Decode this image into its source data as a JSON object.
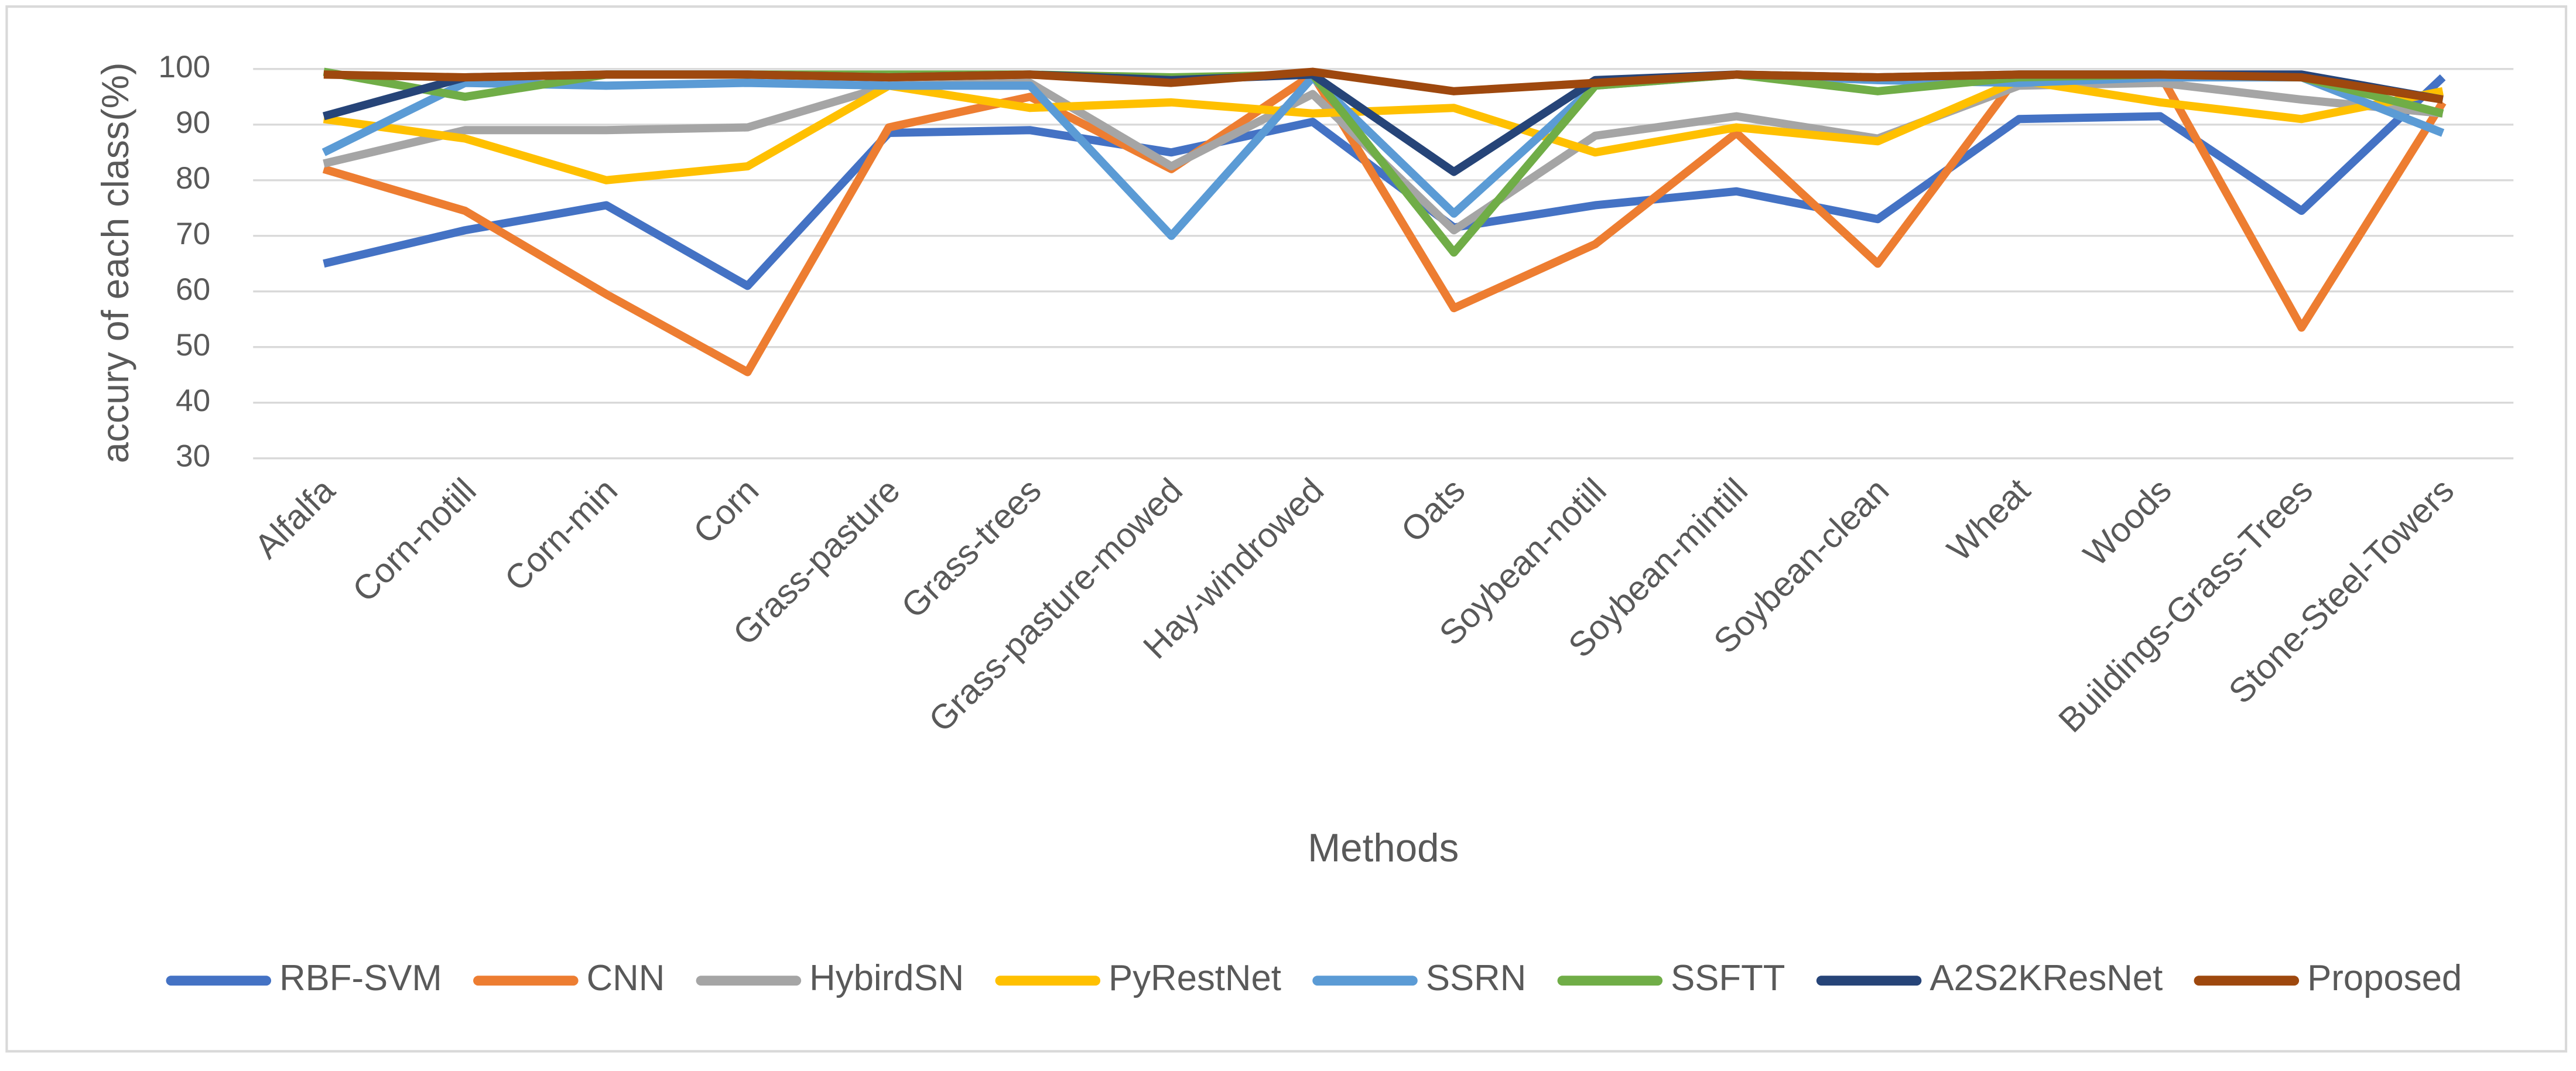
{
  "chart_data": {
    "type": "line",
    "y_label": "accury of each class(%)",
    "x_label": "Methods",
    "categories": [
      "Alfalfa",
      "Corn-notill",
      "Corn-min",
      "Corn",
      "Grass-pasture",
      "Grass-trees",
      "Grass-pasture-mowed",
      "Hay-windrowed",
      "Oats",
      "Soybean-notill",
      "Soybean-mintill",
      "Soybean-clean",
      "Wheat",
      "Woods",
      "Buildings-Grass-Trees",
      "Stone-Steel-Towers"
    ],
    "series": [
      {
        "name": "RBF-SVM",
        "color": "#4472c4",
        "values": [
          65,
          71,
          75.5,
          61,
          88.5,
          89,
          85,
          90.5,
          71.5,
          75.5,
          78,
          73,
          91,
          91.5,
          74.5,
          98.5
        ]
      },
      {
        "name": "CNN",
        "color": "#ed7d31",
        "values": [
          82,
          74.5,
          59.5,
          45.5,
          89.5,
          95,
          82,
          99,
          57,
          68.5,
          88.5,
          65,
          99,
          99,
          53.5,
          94
        ]
      },
      {
        "name": "HybirdSN",
        "color": "#a5a5a5",
        "values": [
          83,
          89,
          89,
          89.5,
          97,
          97.5,
          82.5,
          95.5,
          71,
          88,
          91.5,
          87.5,
          97,
          97.5,
          94.5,
          92
        ]
      },
      {
        "name": "PyRestNet",
        "color": "#ffc000",
        "values": [
          91,
          87.5,
          80,
          82.5,
          97,
          93,
          94,
          92,
          93,
          85,
          89.5,
          87,
          98,
          94,
          91,
          96
        ]
      },
      {
        "name": "SSRN",
        "color": "#5b9bd5",
        "values": [
          85,
          97.5,
          97,
          97.5,
          97,
          97,
          70,
          98.5,
          74,
          97,
          99,
          98,
          97.5,
          98.5,
          98.5,
          88.5
        ]
      },
      {
        "name": "SSFTT",
        "color": "#70ad47",
        "values": [
          99.5,
          95,
          99,
          99,
          99,
          99,
          98.5,
          99,
          67,
          97,
          99,
          96,
          98.5,
          99,
          98.5,
          92
        ]
      },
      {
        "name": "A2S2KResNet",
        "color": "#264478",
        "values": [
          91.5,
          98.5,
          99,
          99,
          98.5,
          99,
          98,
          99,
          81.5,
          98,
          99,
          98.5,
          99,
          99,
          99,
          94.5
        ]
      },
      {
        "name": "Proposed",
        "color": "#9e480e",
        "values": [
          99,
          98.5,
          99,
          99,
          98.5,
          99,
          97.5,
          99.5,
          96,
          97.5,
          99,
          98.5,
          99,
          99,
          98.5,
          94.5
        ]
      }
    ],
    "ylim": [
      30,
      100
    ],
    "yticks": [
      30,
      40,
      50,
      60,
      70,
      80,
      90,
      100
    ],
    "grid": true,
    "legend": "bottom"
  }
}
